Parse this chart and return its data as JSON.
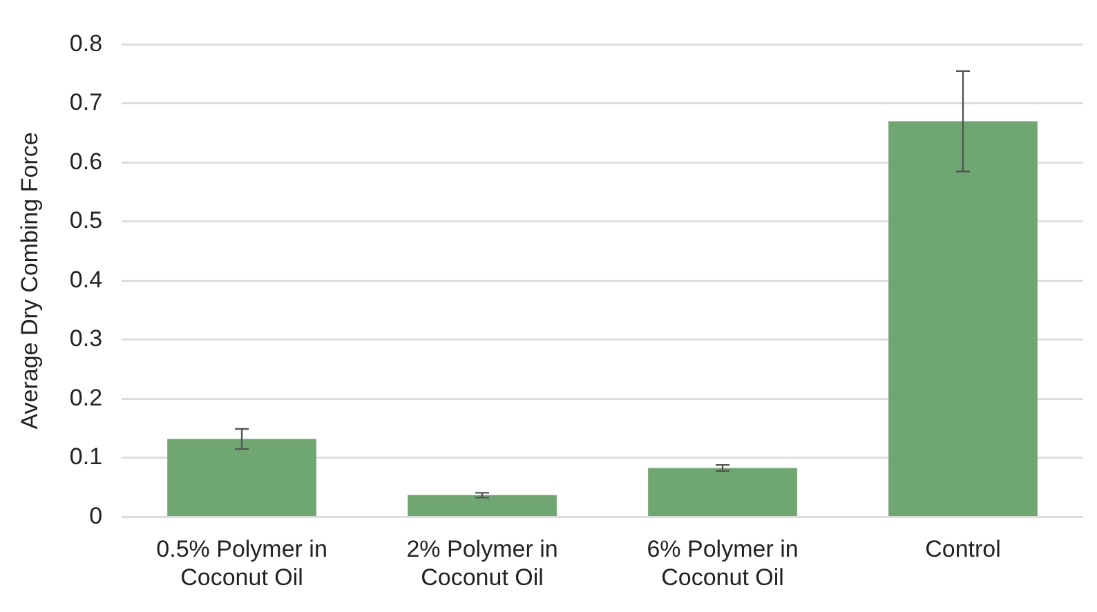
{
  "chart_data": {
    "type": "bar",
    "ylabel": "Average Dry Combing Force",
    "categories": [
      "0.5% Polymer in Coconut Oil",
      "2% Polymer in Coconut Oil",
      "6% Polymer in Coconut Oil",
      "Control"
    ],
    "values": [
      0.132,
      0.037,
      0.083,
      0.67
    ],
    "errors": [
      0.017,
      0.004,
      0.005,
      0.085
    ],
    "color": "#70a672",
    "ylim": [
      0,
      0.8
    ],
    "yticks": [
      0,
      0.1,
      0.2,
      0.3,
      0.4,
      0.5,
      0.6,
      0.7,
      0.8
    ],
    "grid": "y",
    "legend": false
  }
}
